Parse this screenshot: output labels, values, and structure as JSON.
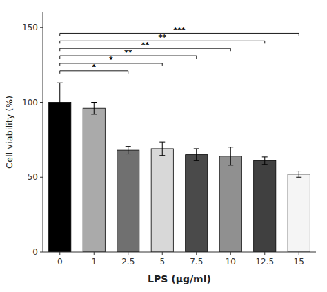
{
  "chart_data": {
    "type": "bar",
    "categories": [
      "0",
      "1",
      "2.5",
      "5",
      "7.5",
      "10",
      "12.5",
      "15"
    ],
    "values": [
      100,
      96,
      68,
      69,
      65,
      64,
      61,
      52
    ],
    "errors": [
      13,
      4,
      2.5,
      4.5,
      4,
      6,
      2.5,
      2
    ],
    "colors": [
      "#000000",
      "#aaaaaa",
      "#707070",
      "#d8d8d8",
      "#4a4a4a",
      "#909090",
      "#404040",
      "#f5f5f5"
    ],
    "ylabel": "Cell viability (%)",
    "xlabel": "LPS (μg/ml)",
    "ylim": [
      0,
      160
    ],
    "yticks": [
      0,
      50,
      100,
      150
    ],
    "grid": false,
    "brackets": [
      {
        "left": 0,
        "right": 2,
        "y": 121,
        "label": "*"
      },
      {
        "left": 0,
        "right": 3,
        "y": 126,
        "label": "*"
      },
      {
        "left": 0,
        "right": 4,
        "y": 131,
        "label": "**"
      },
      {
        "left": 0,
        "right": 5,
        "y": 136,
        "label": "**"
      },
      {
        "left": 0,
        "right": 6,
        "y": 141,
        "label": "**"
      },
      {
        "left": 0,
        "right": 7,
        "y": 146,
        "label": "***"
      }
    ]
  }
}
